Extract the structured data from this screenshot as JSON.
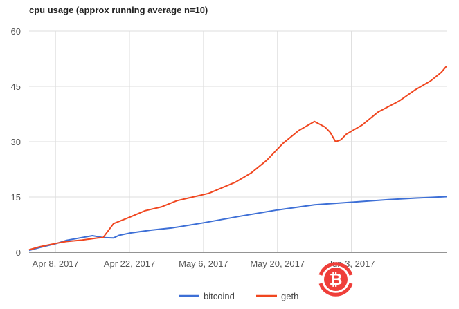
{
  "chart_data": {
    "type": "line",
    "title": "cpu usage (approx running average n=10)",
    "xlabel": "",
    "ylabel": "",
    "ylim": [
      0,
      60
    ],
    "yticks": [
      0,
      15,
      30,
      45,
      60
    ],
    "xlim": [
      "2017-04-03",
      "2017-06-21"
    ],
    "xticks": [
      {
        "date": "2017-04-08",
        "label": "Apr 8, 2017"
      },
      {
        "date": "2017-04-22",
        "label": "Apr 22, 2017"
      },
      {
        "date": "2017-05-06",
        "label": "May 6, 2017"
      },
      {
        "date": "2017-05-20",
        "label": "May 20, 2017"
      },
      {
        "date": "2017-06-03",
        "label": "Jun 3, 2017"
      }
    ],
    "grid": true,
    "legend_position": "bottom",
    "series": [
      {
        "name": "bitcoind",
        "color": "#3d6fd6",
        "points": [
          [
            "2017-04-03",
            0.5
          ],
          [
            "2017-04-05",
            1.3
          ],
          [
            "2017-04-08",
            2.3
          ],
          [
            "2017-04-10",
            3.2
          ],
          [
            "2017-04-13",
            4.0
          ],
          [
            "2017-04-15",
            4.5
          ],
          [
            "2017-04-17",
            4.0
          ],
          [
            "2017-04-19",
            3.9
          ],
          [
            "2017-04-20",
            4.6
          ],
          [
            "2017-04-22",
            5.2
          ],
          [
            "2017-04-26",
            6.0
          ],
          [
            "2017-04-30",
            6.6
          ],
          [
            "2017-05-06",
            8.0
          ],
          [
            "2017-05-13",
            9.8
          ],
          [
            "2017-05-20",
            11.5
          ],
          [
            "2017-05-27",
            12.9
          ],
          [
            "2017-06-03",
            13.6
          ],
          [
            "2017-06-10",
            14.3
          ],
          [
            "2017-06-15",
            14.7
          ],
          [
            "2017-06-21",
            15.1
          ]
        ]
      },
      {
        "name": "geth",
        "color": "#f0461f",
        "points": [
          [
            "2017-04-03",
            0.7
          ],
          [
            "2017-04-05",
            1.5
          ],
          [
            "2017-04-08",
            2.4
          ],
          [
            "2017-04-10",
            2.9
          ],
          [
            "2017-04-13",
            3.3
          ],
          [
            "2017-04-16",
            3.9
          ],
          [
            "2017-04-17",
            4.0
          ],
          [
            "2017-04-19",
            7.8
          ],
          [
            "2017-04-22",
            9.5
          ],
          [
            "2017-04-25",
            11.3
          ],
          [
            "2017-04-28",
            12.3
          ],
          [
            "2017-05-01",
            14.0
          ],
          [
            "2017-05-04",
            15.0
          ],
          [
            "2017-05-07",
            16.0
          ],
          [
            "2017-05-10",
            17.8
          ],
          [
            "2017-05-12",
            19.0
          ],
          [
            "2017-05-15",
            21.5
          ],
          [
            "2017-05-18",
            25.0
          ],
          [
            "2017-05-21",
            29.5
          ],
          [
            "2017-05-24",
            33.0
          ],
          [
            "2017-05-27",
            35.5
          ],
          [
            "2017-05-29",
            34.0
          ],
          [
            "2017-05-30",
            32.5
          ],
          [
            "2017-05-31",
            30.0
          ],
          [
            "2017-06-01",
            30.5
          ],
          [
            "2017-06-02",
            32.0
          ],
          [
            "2017-06-05",
            34.5
          ],
          [
            "2017-06-08",
            38.0
          ],
          [
            "2017-06-12",
            41.0
          ],
          [
            "2017-06-15",
            44.0
          ],
          [
            "2017-06-18",
            46.5
          ],
          [
            "2017-06-20",
            48.8
          ],
          [
            "2017-06-21",
            50.5
          ]
        ]
      }
    ]
  },
  "watermark": {
    "icon": "bitcoin-logo-icon",
    "color": "#ef3f3a",
    "text": "₿"
  }
}
